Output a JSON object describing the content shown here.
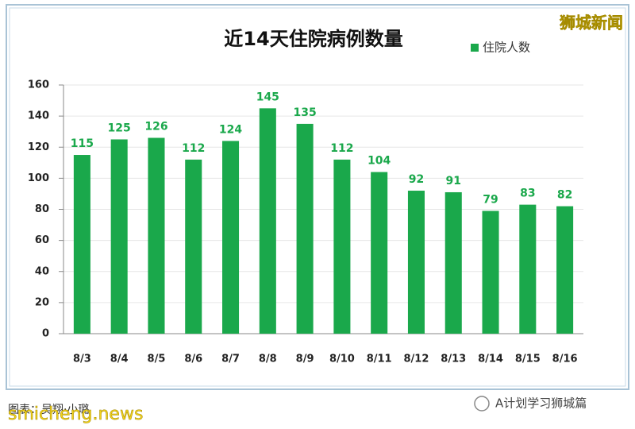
{
  "chart_data": {
    "type": "bar",
    "title": "近14天住院病例数量",
    "categories": [
      "8/3",
      "8/4",
      "8/5",
      "8/6",
      "8/7",
      "8/8",
      "8/9",
      "8/10",
      "8/11",
      "8/12",
      "8/13",
      "8/14",
      "8/15",
      "8/16"
    ],
    "series": [
      {
        "name": "住院人数",
        "color": "#1aa84b",
        "values": [
          115,
          125,
          126,
          112,
          124,
          145,
          135,
          112,
          104,
          92,
          91,
          79,
          83,
          82
        ]
      }
    ],
    "ylim": [
      0,
      160
    ],
    "yticks": [
      0,
      20,
      40,
      60,
      80,
      100,
      120,
      140,
      160
    ],
    "grid": true,
    "legend": "top-right"
  },
  "credit": "图表：吴翔·小璐",
  "watermarks": {
    "top_right": "狮城新闻",
    "bottom_left": "smicheng.news",
    "bottom_right": "A计划学习狮城篇"
  }
}
